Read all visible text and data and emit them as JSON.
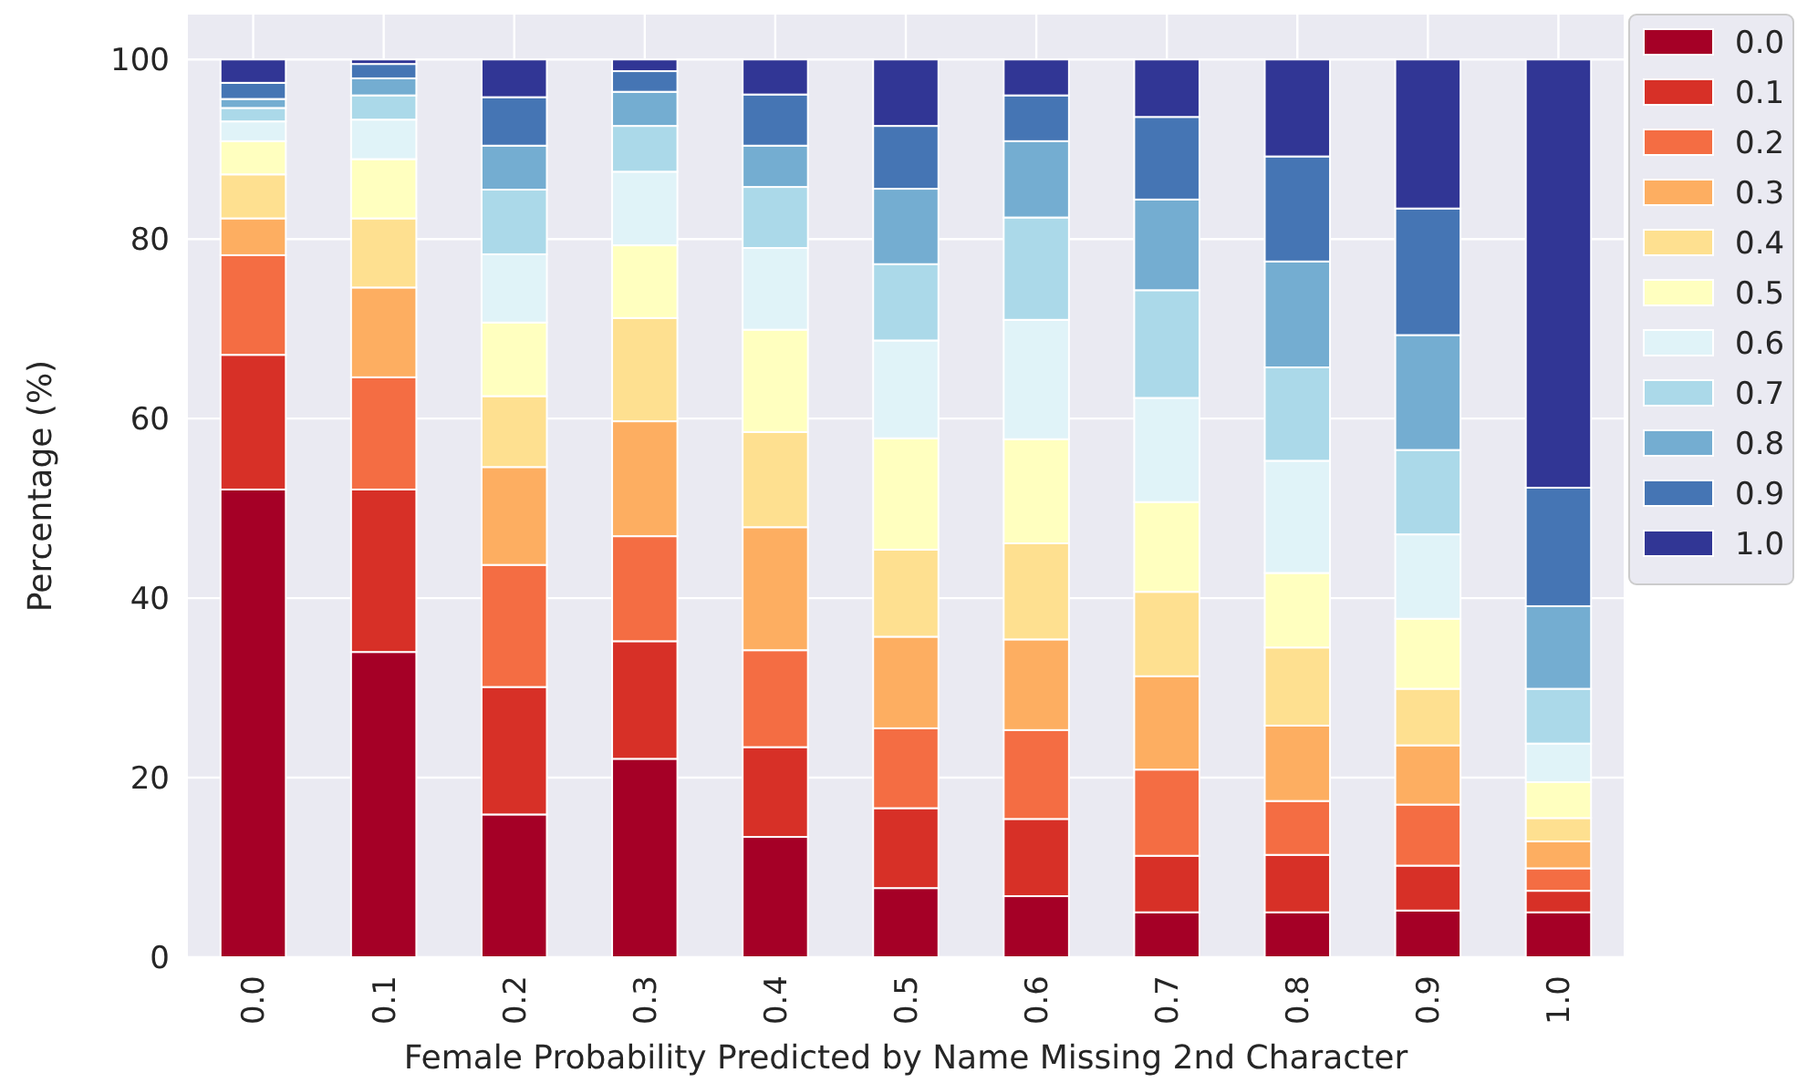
{
  "chart_data": {
    "type": "bar",
    "stacked": true,
    "xlabel": "Female Probability Predicted by Name Missing 2nd Character",
    "ylabel": "Percentage (%)",
    "categories": [
      "0.0",
      "0.1",
      "0.2",
      "0.3",
      "0.4",
      "0.5",
      "0.6",
      "0.7",
      "0.8",
      "0.9",
      "1.0"
    ],
    "ylim": [
      0,
      105
    ],
    "yticks": [
      0,
      20,
      40,
      60,
      80,
      100
    ],
    "grid": true,
    "legend": "top right",
    "series": [
      {
        "name": "0.0",
        "color": "#a50026",
        "values": [
          52.1,
          34.0,
          15.9,
          22.1,
          13.4,
          7.7,
          6.8,
          5.0,
          5.0,
          5.2,
          5.0
        ]
      },
      {
        "name": "0.1",
        "color": "#d73027",
        "values": [
          15.0,
          18.1,
          14.2,
          13.1,
          10.0,
          8.9,
          8.6,
          6.3,
          6.4,
          5.0,
          2.4
        ]
      },
      {
        "name": "0.2",
        "color": "#f46d43",
        "values": [
          11.1,
          12.5,
          13.6,
          11.7,
          10.8,
          8.9,
          9.9,
          9.6,
          6.0,
          6.8,
          2.5
        ]
      },
      {
        "name": "0.3",
        "color": "#fdae61",
        "values": [
          4.1,
          10.0,
          10.9,
          12.8,
          13.7,
          10.2,
          10.1,
          10.4,
          8.4,
          6.6,
          3.0
        ]
      },
      {
        "name": "0.4",
        "color": "#fee090",
        "values": [
          4.9,
          7.7,
          7.9,
          11.5,
          10.6,
          9.7,
          10.7,
          9.4,
          8.7,
          6.3,
          2.6
        ]
      },
      {
        "name": "0.5",
        "color": "#ffffbf",
        "values": [
          3.7,
          6.6,
          8.2,
          8.1,
          11.4,
          12.4,
          11.6,
          10.0,
          8.3,
          7.8,
          4.0
        ]
      },
      {
        "name": "0.6",
        "color": "#e0f3f8",
        "values": [
          2.2,
          4.4,
          7.6,
          8.2,
          9.1,
          10.9,
          13.3,
          11.6,
          12.5,
          9.4,
          4.3
        ]
      },
      {
        "name": "0.7",
        "color": "#abd9e9",
        "values": [
          1.5,
          2.7,
          7.2,
          5.1,
          6.8,
          8.5,
          11.4,
          12.0,
          10.4,
          9.4,
          6.1
        ]
      },
      {
        "name": "0.8",
        "color": "#74add1",
        "values": [
          1.0,
          1.9,
          4.9,
          3.8,
          4.6,
          8.4,
          8.5,
          10.1,
          11.8,
          12.8,
          9.2
        ]
      },
      {
        "name": "0.9",
        "color": "#4575b4",
        "values": [
          1.8,
          1.6,
          5.4,
          2.3,
          5.7,
          7.0,
          5.1,
          9.2,
          11.7,
          14.1,
          13.2
        ]
      },
      {
        "name": "1.0",
        "color": "#313695",
        "values": [
          2.6,
          0.5,
          4.2,
          1.3,
          3.9,
          7.4,
          4.0,
          6.4,
          10.8,
          16.6,
          47.7
        ]
      }
    ]
  }
}
